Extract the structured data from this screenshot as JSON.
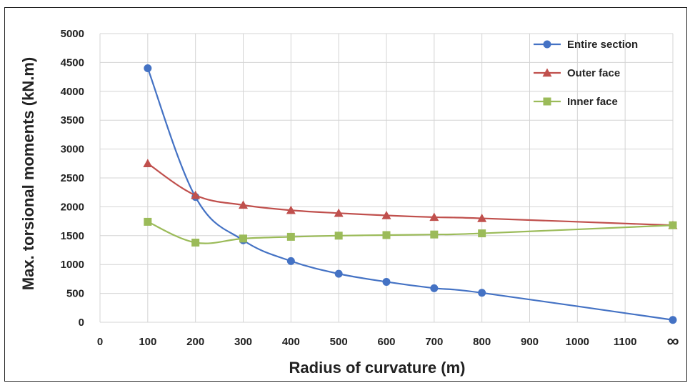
{
  "chart_data": {
    "type": "line",
    "xlabel": "Radius of curvature (m)",
    "ylabel": "Max. torsional moments (kN.m)",
    "ylim": [
      0,
      5000
    ],
    "yticks": [
      "0",
      "500",
      "1000",
      "1500",
      "2000",
      "2500",
      "3000",
      "3500",
      "4000",
      "4500",
      "5000"
    ],
    "x_ticks": [
      "0",
      "100",
      "200",
      "300",
      "400",
      "500",
      "600",
      "700",
      "800",
      "900",
      "1000",
      "1100",
      "∞"
    ],
    "x": [
      "100",
      "200",
      "300",
      "400",
      "500",
      "600",
      "700",
      "800",
      "∞"
    ],
    "grid": true,
    "legend_position": "top-right",
    "series": [
      {
        "name": "Entire section",
        "color": "#4472C4",
        "marker": "circle",
        "values": [
          4400,
          2170,
          1420,
          1060,
          840,
          700,
          590,
          510,
          40
        ]
      },
      {
        "name": "Outer face",
        "color": "#C0504D",
        "marker": "triangle",
        "values": [
          2750,
          2200,
          2030,
          1940,
          1890,
          1850,
          1820,
          1800,
          1680
        ]
      },
      {
        "name": "Inner face",
        "color": "#9BBB59",
        "marker": "square",
        "values": [
          1740,
          1380,
          1450,
          1480,
          1500,
          1510,
          1520,
          1540,
          1680
        ]
      }
    ]
  }
}
